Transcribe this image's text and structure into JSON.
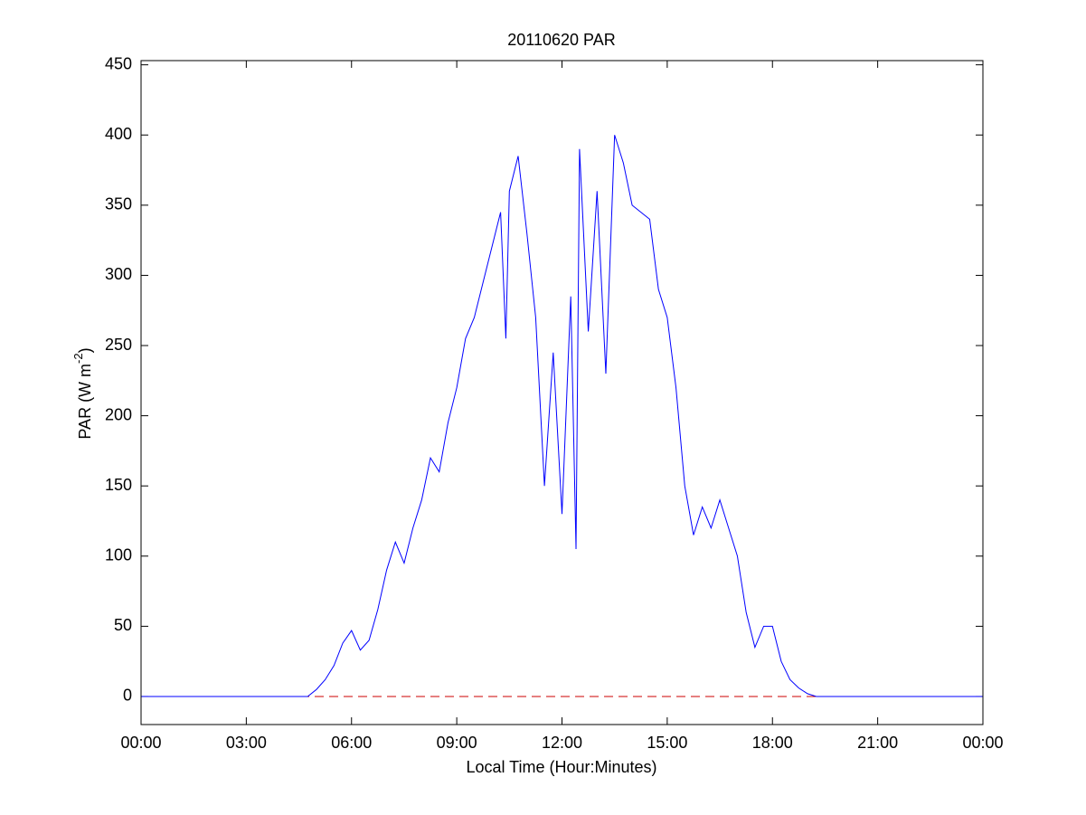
{
  "chart_data": {
    "type": "line",
    "title": "20110620 PAR",
    "xlabel": "Local Time (Hour:Minutes)",
    "ylabel": {
      "text": "PAR (W m",
      "superscript": "-2",
      "suffix": ")"
    },
    "x": [
      0,
      4.75,
      5.0,
      5.25,
      5.5,
      5.75,
      6.0,
      6.25,
      6.5,
      6.75,
      7.0,
      7.25,
      7.5,
      7.75,
      8.0,
      8.25,
      8.5,
      8.75,
      9.0,
      9.25,
      9.5,
      9.75,
      10.0,
      10.25,
      10.4,
      10.5,
      10.75,
      11.0,
      11.25,
      11.5,
      11.75,
      12.0,
      12.25,
      12.4,
      12.5,
      12.75,
      13.0,
      13.25,
      13.5,
      13.75,
      14.0,
      14.25,
      14.5,
      14.75,
      15.0,
      15.25,
      15.5,
      15.75,
      16.0,
      16.25,
      16.5,
      16.75,
      17.0,
      17.25,
      17.5,
      17.75,
      18.0,
      18.25,
      18.5,
      18.75,
      19.0,
      19.25,
      24
    ],
    "series": [
      {
        "name": "PAR",
        "color": "#0000ff",
        "values": [
          0,
          0,
          5,
          12,
          22,
          38,
          47,
          33,
          40,
          62,
          90,
          110,
          95,
          120,
          140,
          170,
          160,
          195,
          220,
          255,
          270,
          295,
          320,
          345,
          255,
          360,
          385,
          330,
          270,
          150,
          245,
          130,
          285,
          105,
          390,
          260,
          360,
          230,
          400,
          380,
          350,
          345,
          340,
          290,
          270,
          220,
          150,
          115,
          135,
          120,
          140,
          120,
          100,
          60,
          35,
          50,
          50,
          25,
          12,
          6,
          2,
          0,
          0
        ]
      }
    ],
    "hline": 0,
    "hline_color": "#cc0000",
    "xlim": [
      0,
      24
    ],
    "xticks": [
      {
        "value": 0,
        "label": "00:00"
      },
      {
        "value": 3,
        "label": "03:00"
      },
      {
        "value": 6,
        "label": "06:00"
      },
      {
        "value": 9,
        "label": "09:00"
      },
      {
        "value": 12,
        "label": "12:00"
      },
      {
        "value": 15,
        "label": "15:00"
      },
      {
        "value": 18,
        "label": "18:00"
      },
      {
        "value": 21,
        "label": "21:00"
      },
      {
        "value": 24,
        "label": "00:00"
      }
    ],
    "ylim": [
      -20,
      453
    ],
    "yticks": [
      0,
      50,
      100,
      150,
      200,
      250,
      300,
      350,
      400,
      450
    ],
    "grid": false
  }
}
